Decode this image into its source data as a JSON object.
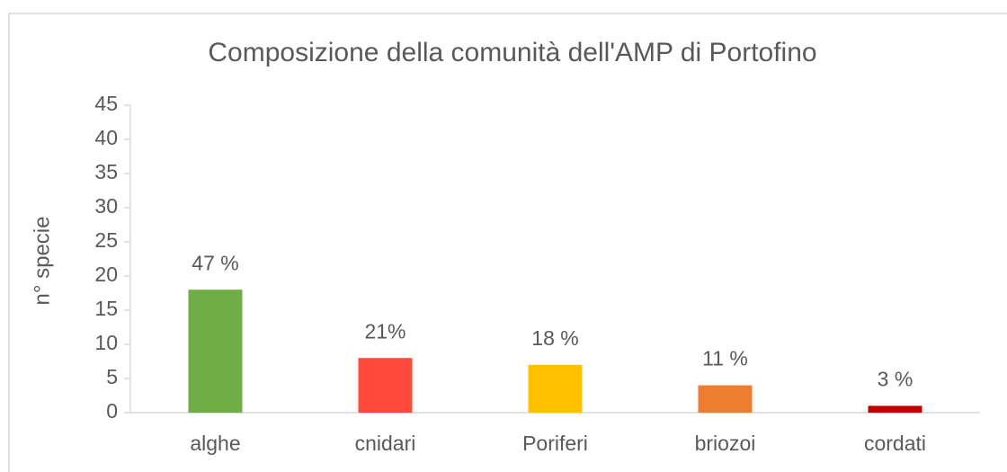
{
  "chart_data": {
    "type": "bar",
    "title": "Composizione della comunità dell'AMP di Portofino",
    "y_label": "n° specie",
    "categories": [
      "alghe",
      "cnidari",
      "Poriferi",
      "briozoi",
      "cordati"
    ],
    "values": [
      18,
      8,
      7,
      4,
      1
    ],
    "bar_labels": [
      "47 %",
      "21%",
      "18 %",
      "11 %",
      "3 %"
    ],
    "colors": [
      "#70ad47",
      "#ff4b3e",
      "#ffc000",
      "#ed7d31",
      "#c00000"
    ],
    "ylim": [
      0,
      45
    ],
    "yticks": [
      0,
      5,
      10,
      15,
      20,
      25,
      30,
      35,
      40,
      45
    ],
    "grid": false
  }
}
